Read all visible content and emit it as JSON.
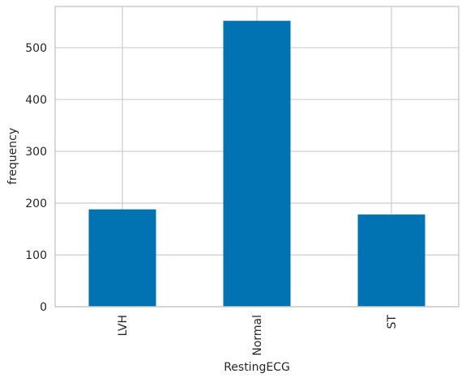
{
  "chart_data": {
    "type": "bar",
    "x_label": "RestingECG",
    "y_label": "frequency",
    "categories": [
      "LVH",
      "Normal",
      "ST"
    ],
    "values": [
      188,
      552,
      178
    ],
    "color": "#0173b2",
    "ylim": [
      0,
      579.6
    ],
    "yticks": [
      0,
      100,
      200,
      300,
      400,
      500
    ],
    "grid": true
  }
}
